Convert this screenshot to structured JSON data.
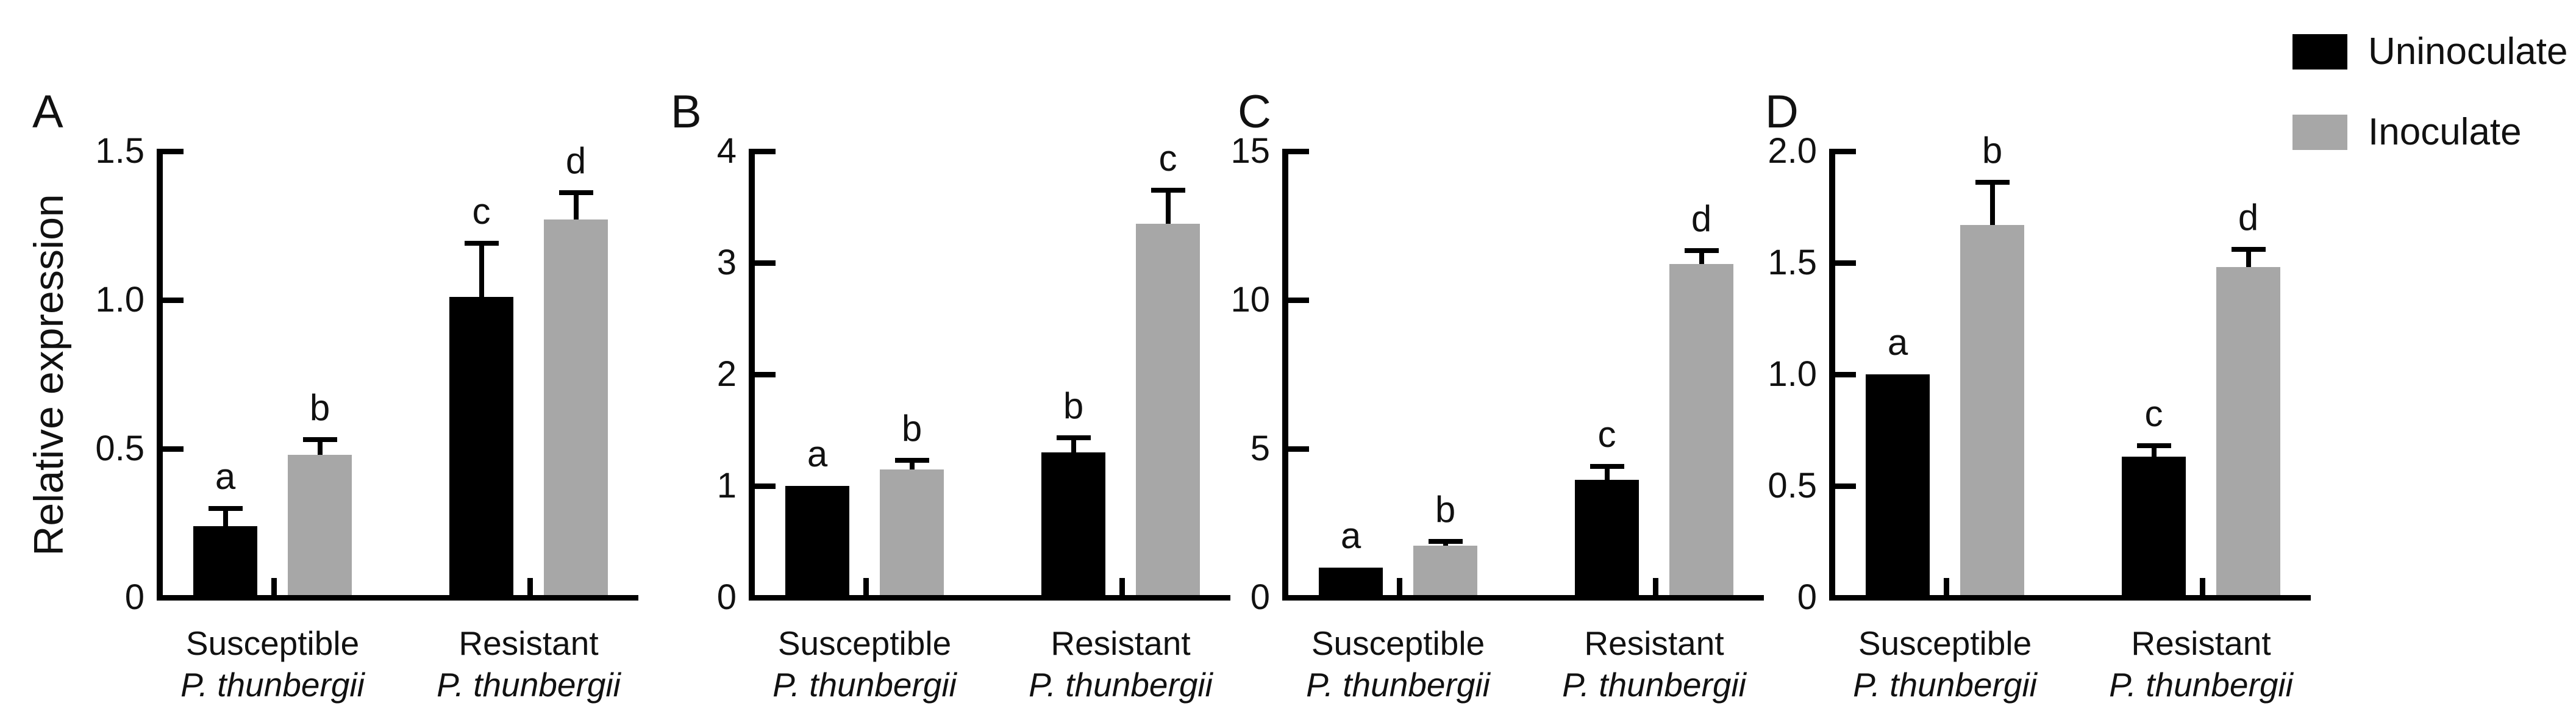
{
  "figure": {
    "ylabel": "Relative expression",
    "legend": {
      "items": [
        {
          "label": "Uninoculate",
          "color": "#000000"
        },
        {
          "label": "Inoculate",
          "color": "#a7a7a7"
        }
      ]
    },
    "colors": {
      "bar_black": "#000000",
      "bar_gray": "#a7a7a7",
      "axis": "#000000",
      "text": "#111111"
    }
  },
  "chart_data": [
    {
      "type": "bar",
      "panel_label": "A",
      "ylabel": "Relative expression",
      "ylim": [
        0,
        1.5
      ],
      "yticks": [
        0,
        0.5,
        1.0,
        1.5
      ],
      "ytick_labels": [
        "0",
        "0.5",
        "1.0",
        "1.5"
      ],
      "categories": [
        [
          "Susceptible",
          "P. thunbergii"
        ],
        [
          "Resistant",
          "P. thunbergii"
        ]
      ],
      "series": [
        {
          "name": "Uninoculate",
          "color": "#000000",
          "values": [
            0.24,
            1.01
          ],
          "error_top": [
            0.3,
            1.19
          ],
          "sig_letters": [
            "a",
            "c"
          ]
        },
        {
          "name": "Inoculate",
          "color": "#a7a7a7",
          "values": [
            0.48,
            1.27
          ],
          "error_top": [
            0.53,
            1.36
          ],
          "sig_letters": [
            "b",
            "d"
          ]
        }
      ],
      "grid": false,
      "legend_position": "figure-top-right"
    },
    {
      "type": "bar",
      "panel_label": "B",
      "ylabel": "Relative expression",
      "ylim": [
        0,
        4
      ],
      "yticks": [
        0,
        1,
        2,
        3,
        4
      ],
      "ytick_labels": [
        "0",
        "1",
        "2",
        "3",
        "4"
      ],
      "categories": [
        [
          "Susceptible",
          "P. thunbergii"
        ],
        [
          "Resistant",
          "P. thunbergii"
        ]
      ],
      "series": [
        {
          "name": "Uninoculate",
          "color": "#000000",
          "values": [
            1.0,
            1.3
          ],
          "error_top": [
            null,
            1.43
          ],
          "sig_letters": [
            "a",
            "b"
          ]
        },
        {
          "name": "Inoculate",
          "color": "#a7a7a7",
          "values": [
            1.15,
            3.35
          ],
          "error_top": [
            1.23,
            3.65
          ],
          "sig_letters": [
            "b",
            "c"
          ]
        }
      ],
      "grid": false,
      "legend_position": "figure-top-right"
    },
    {
      "type": "bar",
      "panel_label": "C",
      "ylabel": "Relative expression",
      "ylim": [
        0,
        15
      ],
      "yticks": [
        0,
        5,
        10,
        15
      ],
      "ytick_labels": [
        "0",
        "5",
        "10",
        "15"
      ],
      "categories": [
        [
          "Susceptible",
          "P. thunbergii"
        ],
        [
          "Resistant",
          "P. thunbergii"
        ]
      ],
      "series": [
        {
          "name": "Uninoculate",
          "color": "#000000",
          "values": [
            1.0,
            3.95
          ],
          "error_top": [
            null,
            4.4
          ],
          "sig_letters": [
            "a",
            "c"
          ]
        },
        {
          "name": "Inoculate",
          "color": "#a7a7a7",
          "values": [
            1.75,
            11.2
          ],
          "error_top": [
            1.88,
            11.65
          ],
          "sig_letters": [
            "b",
            "d"
          ]
        }
      ],
      "grid": false,
      "legend_position": "figure-top-right"
    },
    {
      "type": "bar",
      "panel_label": "D",
      "ylabel": "Relative expression",
      "ylim": [
        0,
        2.0
      ],
      "yticks": [
        0,
        0.5,
        1.0,
        1.5,
        2.0
      ],
      "ytick_labels": [
        "0",
        "0.5",
        "1.0",
        "1.5",
        "2.0"
      ],
      "categories": [
        [
          "Susceptible",
          "P. thunbergii"
        ],
        [
          "Resistant",
          "P. thunbergii"
        ]
      ],
      "series": [
        {
          "name": "Uninoculate",
          "color": "#000000",
          "values": [
            1.0,
            0.63
          ],
          "error_top": [
            null,
            0.68
          ],
          "sig_letters": [
            "a",
            "c"
          ]
        },
        {
          "name": "Inoculate",
          "color": "#a7a7a7",
          "values": [
            1.67,
            1.48
          ],
          "error_top": [
            1.86,
            1.56
          ],
          "sig_letters": [
            "b",
            "d"
          ]
        }
      ],
      "grid": false,
      "legend_position": "figure-top-right"
    }
  ]
}
